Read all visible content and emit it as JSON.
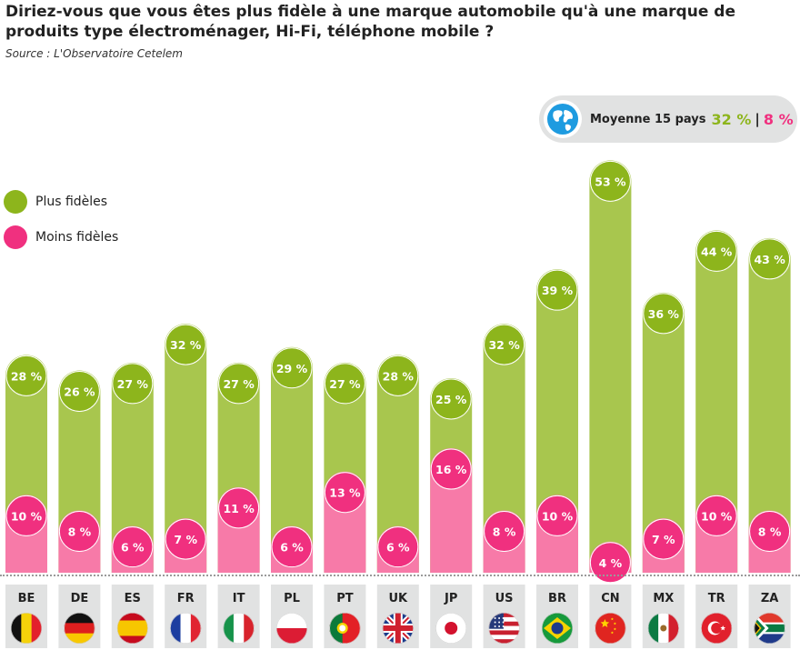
{
  "title": "Diriez-vous que vous êtes plus fidèle à une marque automobile qu'à une marque de produits type électroménager, Hi-Fi, téléphone mobile ?",
  "source": "Source : L'Observatoire Cetelem",
  "average": {
    "icon": "globe-icon",
    "label": "Moyenne 15 pays",
    "green_value": "32 %",
    "separator": "|",
    "pink_value": "8 %"
  },
  "legend": [
    {
      "label": "Plus fidèles",
      "color": "#8db51c"
    },
    {
      "label": "Moins fidèles",
      "color": "#f0307f"
    }
  ],
  "colors": {
    "green_fill": "#a8c64e",
    "green_circle": "#8db51c",
    "pink_fill": "#f77aa8",
    "pink_circle": "#f0307f",
    "country_box": "#e1e2e2"
  },
  "chart_data": {
    "type": "bar",
    "categories": [
      "BE",
      "DE",
      "ES",
      "FR",
      "IT",
      "PL",
      "PT",
      "UK",
      "JP",
      "US",
      "BR",
      "CN",
      "MX",
      "TR",
      "ZA"
    ],
    "series": [
      {
        "name": "Plus fidèles",
        "values": [
          28,
          26,
          27,
          32,
          27,
          29,
          27,
          28,
          25,
          32,
          39,
          53,
          36,
          44,
          43
        ]
      },
      {
        "name": "Moins fidèles",
        "values": [
          10,
          8,
          6,
          7,
          11,
          6,
          13,
          6,
          16,
          8,
          10,
          4,
          7,
          10,
          8
        ]
      }
    ],
    "value_labels": {
      "green": [
        "28 %",
        "26 %",
        "27 %",
        "32 %",
        "27 %",
        "29 %",
        "27 %",
        "28 %",
        "25 %",
        "32 %",
        "39 %",
        "53 %",
        "36 %",
        "44 %",
        "43 %"
      ],
      "pink": [
        "10 %",
        "8 %",
        "6 %",
        "7 %",
        "11 %",
        "6 %",
        "13 %",
        "6 %",
        "16 %",
        "8 %",
        "10 %",
        "4 %",
        "7 %",
        "10 %",
        "8 %"
      ]
    },
    "flags": [
      "flag-belgium",
      "flag-germany",
      "flag-spain",
      "flag-france",
      "flag-italy",
      "flag-poland",
      "flag-portugal",
      "flag-uk",
      "flag-japan",
      "flag-usa",
      "flag-brazil",
      "flag-china",
      "flag-mexico",
      "flag-turkey",
      "flag-south-africa"
    ]
  }
}
